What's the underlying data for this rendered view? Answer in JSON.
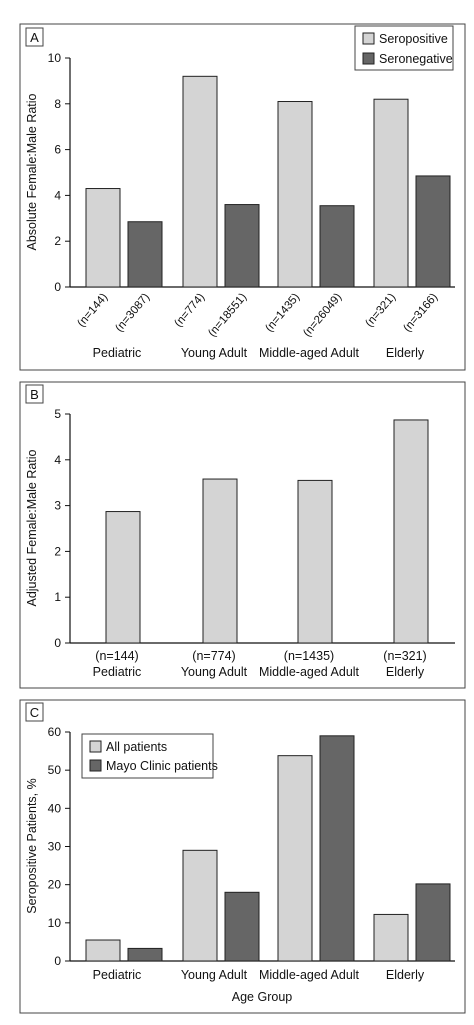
{
  "colors": {
    "light": "#d4d4d4",
    "dark": "#666666",
    "stroke": "#222222"
  },
  "chart_data": [
    {
      "panel": "A",
      "type": "bar",
      "ylabel": "Absolute Female:Male Ratio",
      "ylim": [
        0,
        10
      ],
      "yticks": [
        "0",
        "2",
        "4",
        "6",
        "8",
        "10"
      ],
      "categories": [
        "Pediatric",
        "Young Adult",
        "Middle-aged Adult",
        "Elderly"
      ],
      "n_labels": [
        [
          "(n=144)",
          "(n=3087)"
        ],
        [
          "(n=774)",
          "(n=18551)"
        ],
        [
          "(n=1435)",
          "(n=26049)"
        ],
        [
          "(n=321)",
          "(n=3166)"
        ]
      ],
      "series": [
        {
          "name": "Seropositive",
          "values": [
            4.3,
            9.2,
            8.1,
            8.2
          ]
        },
        {
          "name": "Seronegative",
          "values": [
            2.85,
            3.6,
            3.55,
            4.85
          ]
        }
      ],
      "legend": "top-right"
    },
    {
      "panel": "B",
      "type": "bar",
      "ylabel": "Adjusted Female:Male Ratio",
      "ylim": [
        0,
        5
      ],
      "yticks": [
        "0",
        "1",
        "2",
        "3",
        "4",
        "5"
      ],
      "categories": [
        "Pediatric",
        "Young Adult",
        "Middle-aged Adult",
        "Elderly"
      ],
      "n_labels": [
        "(n=144)",
        "(n=774)",
        "(n=1435)",
        "(n=321)"
      ],
      "series": [
        {
          "name": "",
          "values": [
            2.87,
            3.58,
            3.55,
            4.87
          ]
        }
      ]
    },
    {
      "panel": "C",
      "type": "bar",
      "ylabel": "Seropositive Patients, %",
      "xlabel": "Age Group",
      "ylim": [
        0,
        60
      ],
      "yticks": [
        "0",
        "10",
        "20",
        "30",
        "40",
        "50",
        "60"
      ],
      "categories": [
        "Pediatric",
        "Young Adult",
        "Middle-aged Adult",
        "Elderly"
      ],
      "series": [
        {
          "name": "All patients",
          "values": [
            5.5,
            29,
            53.8,
            12.2
          ]
        },
        {
          "name": "Mayo Clinic patients",
          "values": [
            3.3,
            18,
            59,
            20.2
          ]
        }
      ],
      "legend": "top-left"
    }
  ]
}
